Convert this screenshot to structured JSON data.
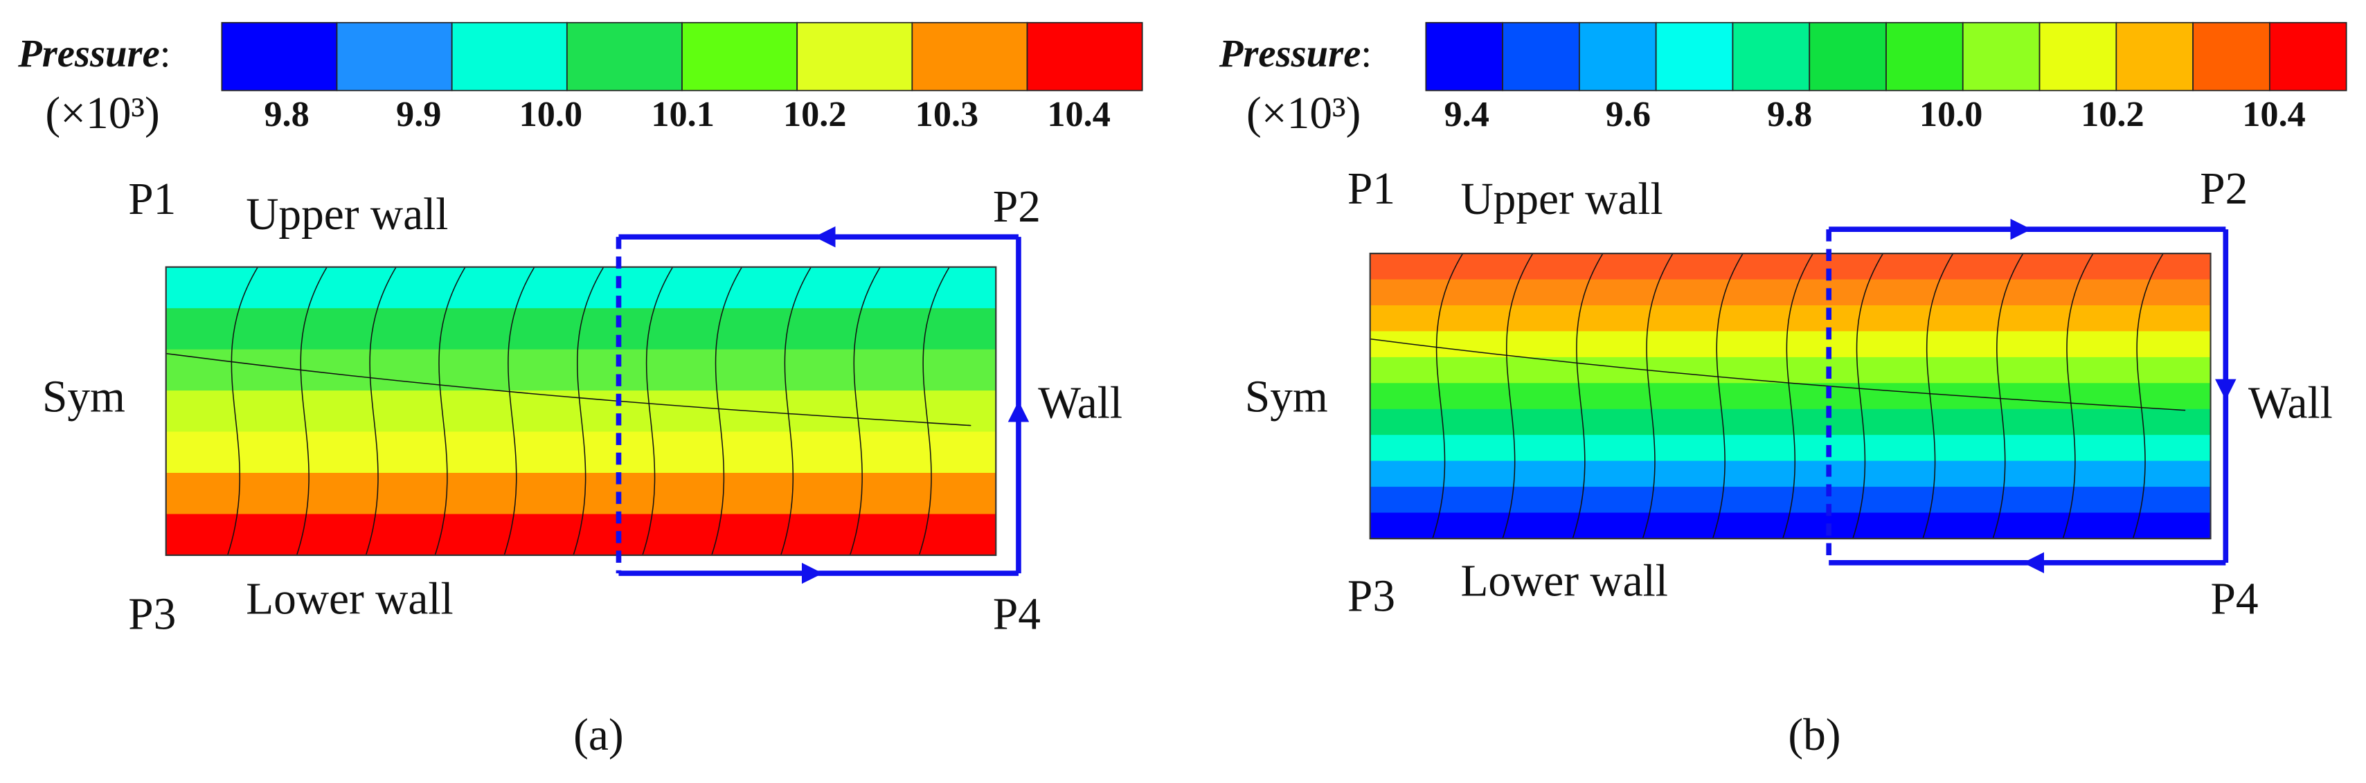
{
  "panels": [
    {
      "colorbar": {
        "label": "Pressure",
        "separator": ":",
        "unit": "(×10³)",
        "colors": [
          "#0000ff",
          "#1e90ff",
          "#00ffd8",
          "#1ee050",
          "#60ff10",
          "#e0ff20",
          "#ff9000",
          "#ff0000"
        ],
        "ticks": [
          "9.8",
          "9.9",
          "10.0",
          "10.1",
          "10.2",
          "10.3",
          "10.4"
        ]
      },
      "bands": [
        "#00ffd8",
        "#20e050",
        "#60f040",
        "#c8ff20",
        "#f0ff20",
        "#ff9000",
        "#ff0000"
      ],
      "labels": {
        "p1": "P1",
        "upper_wall": "Upper wall",
        "p2": "P2",
        "sym": "Sym",
        "wall": "Wall",
        "p3": "P3",
        "lower_wall": "Lower wall",
        "p4": "P4"
      },
      "caption": "(a)"
    },
    {
      "colorbar": {
        "label": "Pressure",
        "separator": ":",
        "unit": "(×10³)",
        "colors": [
          "#0000ff",
          "#0050ff",
          "#00aaff",
          "#00ffee",
          "#00f090",
          "#10e040",
          "#30f020",
          "#90ff20",
          "#e8ff10",
          "#ffb800",
          "#ff6000",
          "#ff0000"
        ],
        "ticks": [
          "9.4",
          "9.6",
          "9.8",
          "10.0",
          "10.2",
          "10.4"
        ]
      },
      "bands": [
        "#ff5a20",
        "#ff8a10",
        "#ffb800",
        "#e8ff10",
        "#90ff20",
        "#30f030",
        "#00e070",
        "#00ffd0",
        "#00aaff",
        "#0050ff",
        "#0000ff"
      ],
      "labels": {
        "p1": "P1",
        "upper_wall": "Upper wall",
        "p2": "P2",
        "sym": "Sym",
        "wall": "Wall",
        "p3": "P3",
        "lower_wall": "Lower wall",
        "p4": "P4"
      },
      "caption": "(b)"
    }
  ]
}
